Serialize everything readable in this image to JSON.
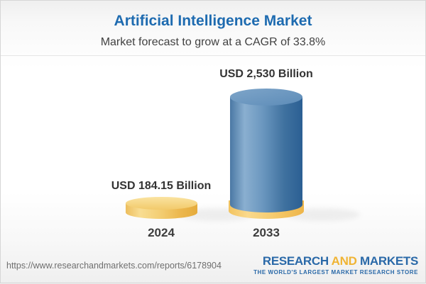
{
  "header": {
    "title": "Artificial Intelligence Market",
    "subtitle": "Market forecast to grow at a CAGR of 33.8%"
  },
  "chart_data": {
    "type": "bar",
    "style": "3d-cylinder",
    "title": "Artificial Intelligence Market",
    "subtitle": "Market forecast to grow at a CAGR of 33.8%",
    "cagr_percent": 33.8,
    "unit": "USD Billion",
    "categories": [
      "2024",
      "2033"
    ],
    "values": [
      184.15,
      2530
    ],
    "ylim": [
      0,
      2530
    ],
    "grid": false,
    "legend": false,
    "bars": [
      {
        "category": "2024",
        "value": 184.15,
        "label": "USD 184.15 Billion",
        "color": "yellow",
        "base": false
      },
      {
        "category": "2033",
        "value": 2530,
        "label": "USD 2,530 Billion",
        "color": "blue",
        "base": true
      }
    ],
    "colors": {
      "bar_yellow": "#f0c766",
      "bar_blue": "#5b89b4",
      "base_yellow": "#f5c765"
    }
  },
  "footer": {
    "url": "https://www.researchandmarkets.com/reports/6178904",
    "logo": {
      "part1": "RESEARCH",
      "part2": "AND",
      "part3": "MARKETS",
      "tagline": "THE WORLD'S LARGEST MARKET RESEARCH STORE",
      "blue": "#2a69a8",
      "yellow": "#f0b434"
    }
  },
  "accent_colors": {
    "title_blue": "#1e6bb0",
    "label_dark": "#333333"
  }
}
